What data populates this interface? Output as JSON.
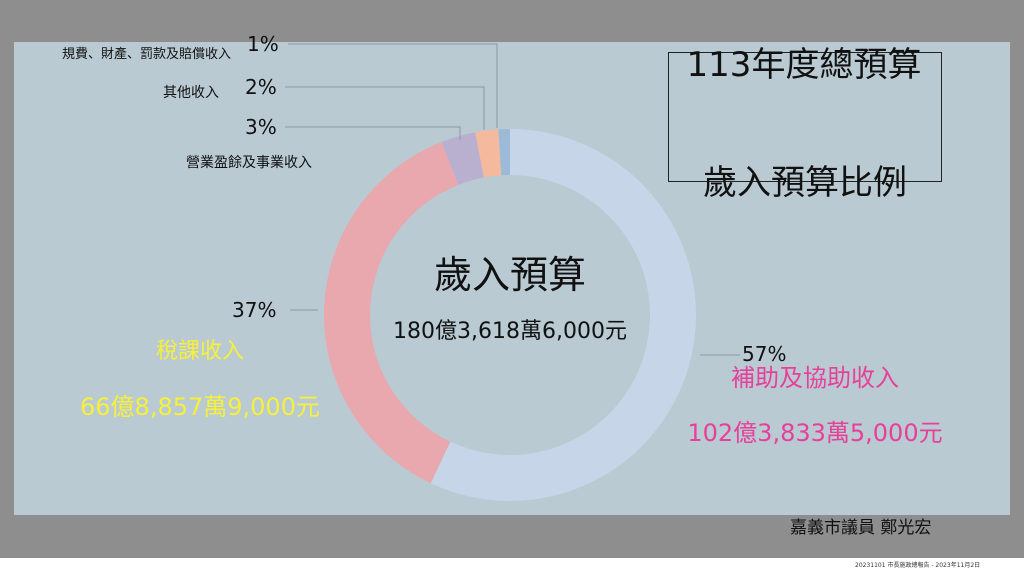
{
  "chart_data": {
    "type": "donut",
    "title": "113年度總預算",
    "subtitle": "歲入預算比例",
    "center_label": "歲入預算",
    "center_value": "180億3,618萬6,000元",
    "categories": [
      "補助及協助收入",
      "稅課收入",
      "營業盈餘及事業收入",
      "其他收入",
      "規費、財產、罰款及賠償收入"
    ],
    "values": [
      57,
      37,
      3,
      2,
      1
    ],
    "value_labels": [
      "57%",
      "37%",
      "3%",
      "2%",
      "1%"
    ],
    "colors": [
      "#c6d6e8",
      "#e9a7ae",
      "#b9b0cf",
      "#f5b99d",
      "#9dbbd9"
    ],
    "amounts": {
      "補助及協助收入": "102億3,833萬5,000元",
      "稅課收入": "66億8,857萬9,000元"
    },
    "author": "嘉義市議員 鄭光宏",
    "footer": "20231101 市長施政總報告 - 2023年11月2日"
  }
}
